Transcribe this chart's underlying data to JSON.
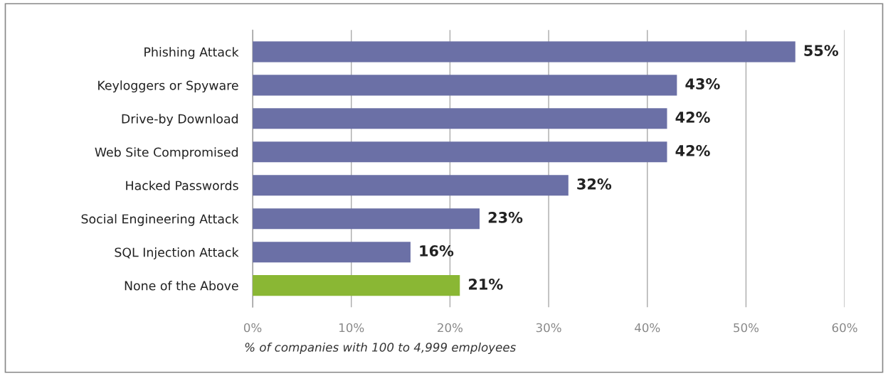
{
  "chart_data": {
    "type": "bar",
    "orientation": "horizontal",
    "categories": [
      "Phishing Attack",
      "Keyloggers or Spyware",
      "Drive-by Download",
      "Web Site Compromised",
      "Hacked Passwords",
      "Social Engineering Attack",
      "SQL Injection Attack",
      "None of the Above"
    ],
    "values": [
      55,
      43,
      42,
      42,
      32,
      23,
      16,
      21
    ],
    "colors": [
      "#6b70a6",
      "#6b70a6",
      "#6b70a6",
      "#6b70a6",
      "#6b70a6",
      "#6b70a6",
      "#6b70a6",
      "#8ab734"
    ],
    "value_labels": [
      "55%",
      "43%",
      "42%",
      "42%",
      "32%",
      "23%",
      "16%",
      "21%"
    ],
    "xlim": [
      0,
      60
    ],
    "xticks": [
      {
        "value": 0,
        "label": "0%"
      },
      {
        "value": 10,
        "label": "10%"
      },
      {
        "value": 20,
        "label": "20%"
      },
      {
        "value": 30,
        "label": "30%"
      },
      {
        "value": 40,
        "label": "40%"
      },
      {
        "value": 50,
        "label": "50%"
      },
      {
        "value": 60,
        "label": "60%"
      }
    ],
    "xlabel": "% of companies with 100 to 4,999 employees",
    "grid": "x",
    "legend": false
  }
}
